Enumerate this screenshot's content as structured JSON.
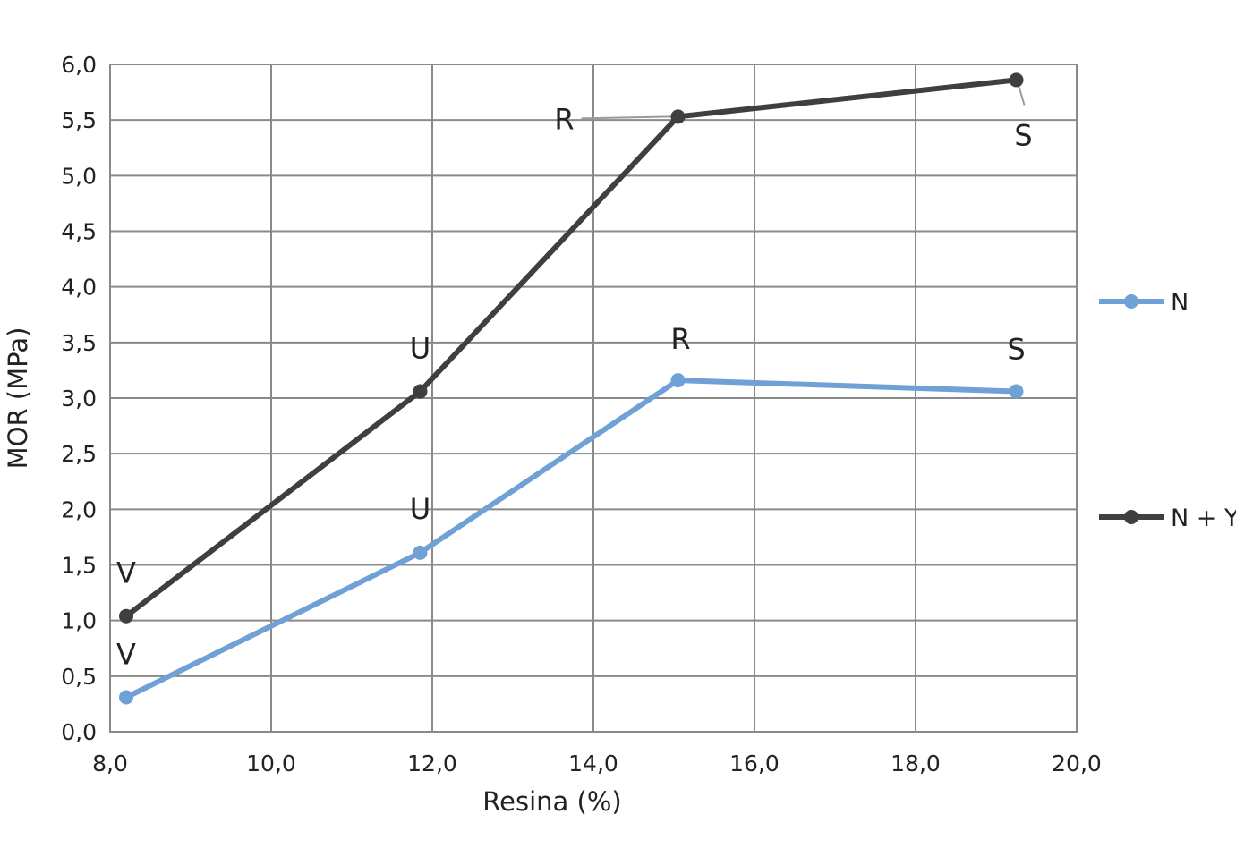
{
  "chart_data": {
    "type": "line",
    "xlabel": "Resina (%)",
    "ylabel": "MOR (MPa)",
    "xlim": [
      8.0,
      20.0
    ],
    "ylim": [
      0.0,
      6.0
    ],
    "x_ticks": [
      "8,0",
      "10,0",
      "12,0",
      "14,0",
      "16,0",
      "18,0",
      "20,0"
    ],
    "y_ticks": [
      "0,0",
      "0,5",
      "1,0",
      "1,5",
      "2,0",
      "2,5",
      "3,0",
      "3,5",
      "4,0",
      "4,5",
      "5,0",
      "5,5",
      "6,0"
    ],
    "grid": true,
    "legend_position": "right",
    "series": [
      {
        "name": "N",
        "color": "#6fa1d6",
        "points": [
          {
            "x": 8.2,
            "y": 0.31,
            "label": "V"
          },
          {
            "x": 11.85,
            "y": 1.61,
            "label": "U"
          },
          {
            "x": 15.05,
            "y": 3.16,
            "label": "R"
          },
          {
            "x": 19.25,
            "y": 3.06,
            "label": "S"
          }
        ]
      },
      {
        "name": "N + Y",
        "color": "#3f3f3f",
        "points": [
          {
            "x": 8.2,
            "y": 1.04,
            "label": "V"
          },
          {
            "x": 11.85,
            "y": 3.06,
            "label": "U"
          },
          {
            "x": 15.05,
            "y": 5.53,
            "label": "R"
          },
          {
            "x": 19.25,
            "y": 5.86,
            "label": "S"
          }
        ]
      }
    ]
  }
}
